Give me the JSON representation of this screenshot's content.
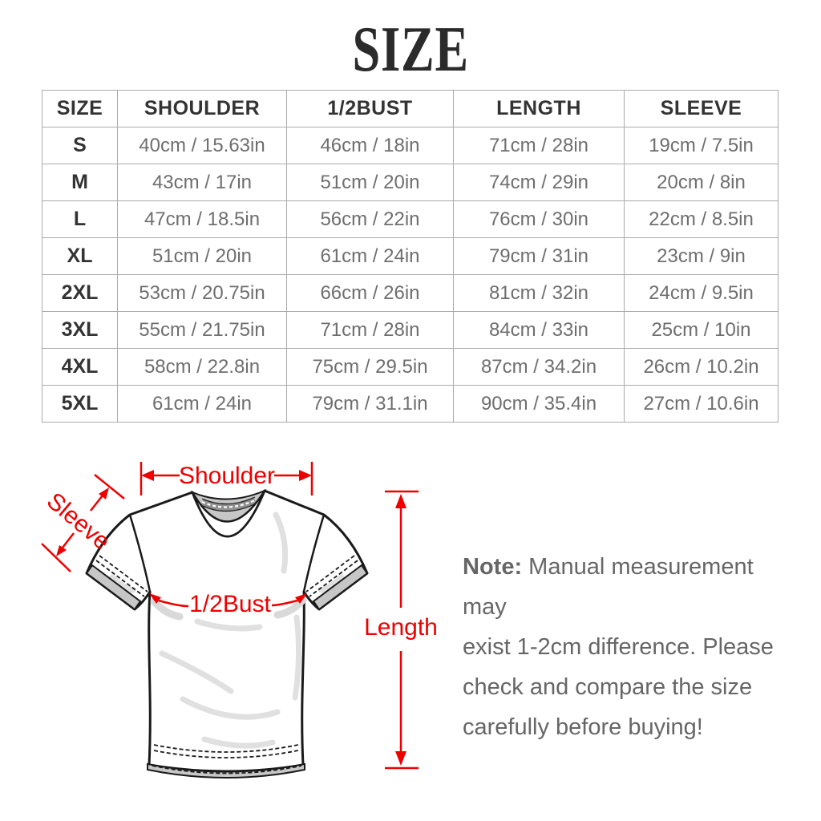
{
  "title": "SIZE",
  "table": {
    "headers": [
      "SIZE",
      "SHOULDER",
      "1/2BUST",
      "LENGTH",
      "SLEEVE"
    ],
    "rows": [
      [
        "S",
        "40cm / 15.63in",
        "46cm / 18in",
        "71cm / 28in",
        "19cm / 7.5in"
      ],
      [
        "M",
        "43cm / 17in",
        "51cm / 20in",
        "74cm / 29in",
        "20cm / 8in"
      ],
      [
        "L",
        "47cm / 18.5in",
        "56cm / 22in",
        "76cm / 30in",
        "22cm / 8.5in"
      ],
      [
        "XL",
        "51cm / 20in",
        "61cm / 24in",
        "79cm / 31in",
        "23cm / 9in"
      ],
      [
        "2XL",
        "53cm / 20.75in",
        "66cm / 26in",
        "81cm / 32in",
        "24cm / 9.5in"
      ],
      [
        "3XL",
        "55cm / 21.75in",
        "71cm / 28in",
        "84cm / 33in",
        "25cm / 10in"
      ],
      [
        "4XL",
        "58cm / 22.8in",
        "75cm / 29.5in",
        "87cm / 34.2in",
        "26cm / 10.2in"
      ],
      [
        "5XL",
        "61cm / 24in",
        "79cm / 31.1in",
        "90cm / 35.4in",
        "27cm / 10.6in"
      ]
    ]
  },
  "diagram": {
    "labels": {
      "shoulder": "Shoulder",
      "sleeve": "Sleeve",
      "bust": "1/2Bust",
      "length": "Length"
    }
  },
  "note": {
    "prefix": "Note:",
    "lines": [
      "Manual measurement may",
      "exist 1-2cm difference. Please",
      "check and compare the size",
      "carefully before buying!"
    ]
  },
  "colors": {
    "accent-red": "#ee0000",
    "table-border": "#ababab",
    "header-text": "#333333",
    "value-text": "#6e6e6e",
    "note-text": "#666666",
    "shade-gray": "#c7c7c7",
    "shirt-outline": "#1a1a1a"
  }
}
